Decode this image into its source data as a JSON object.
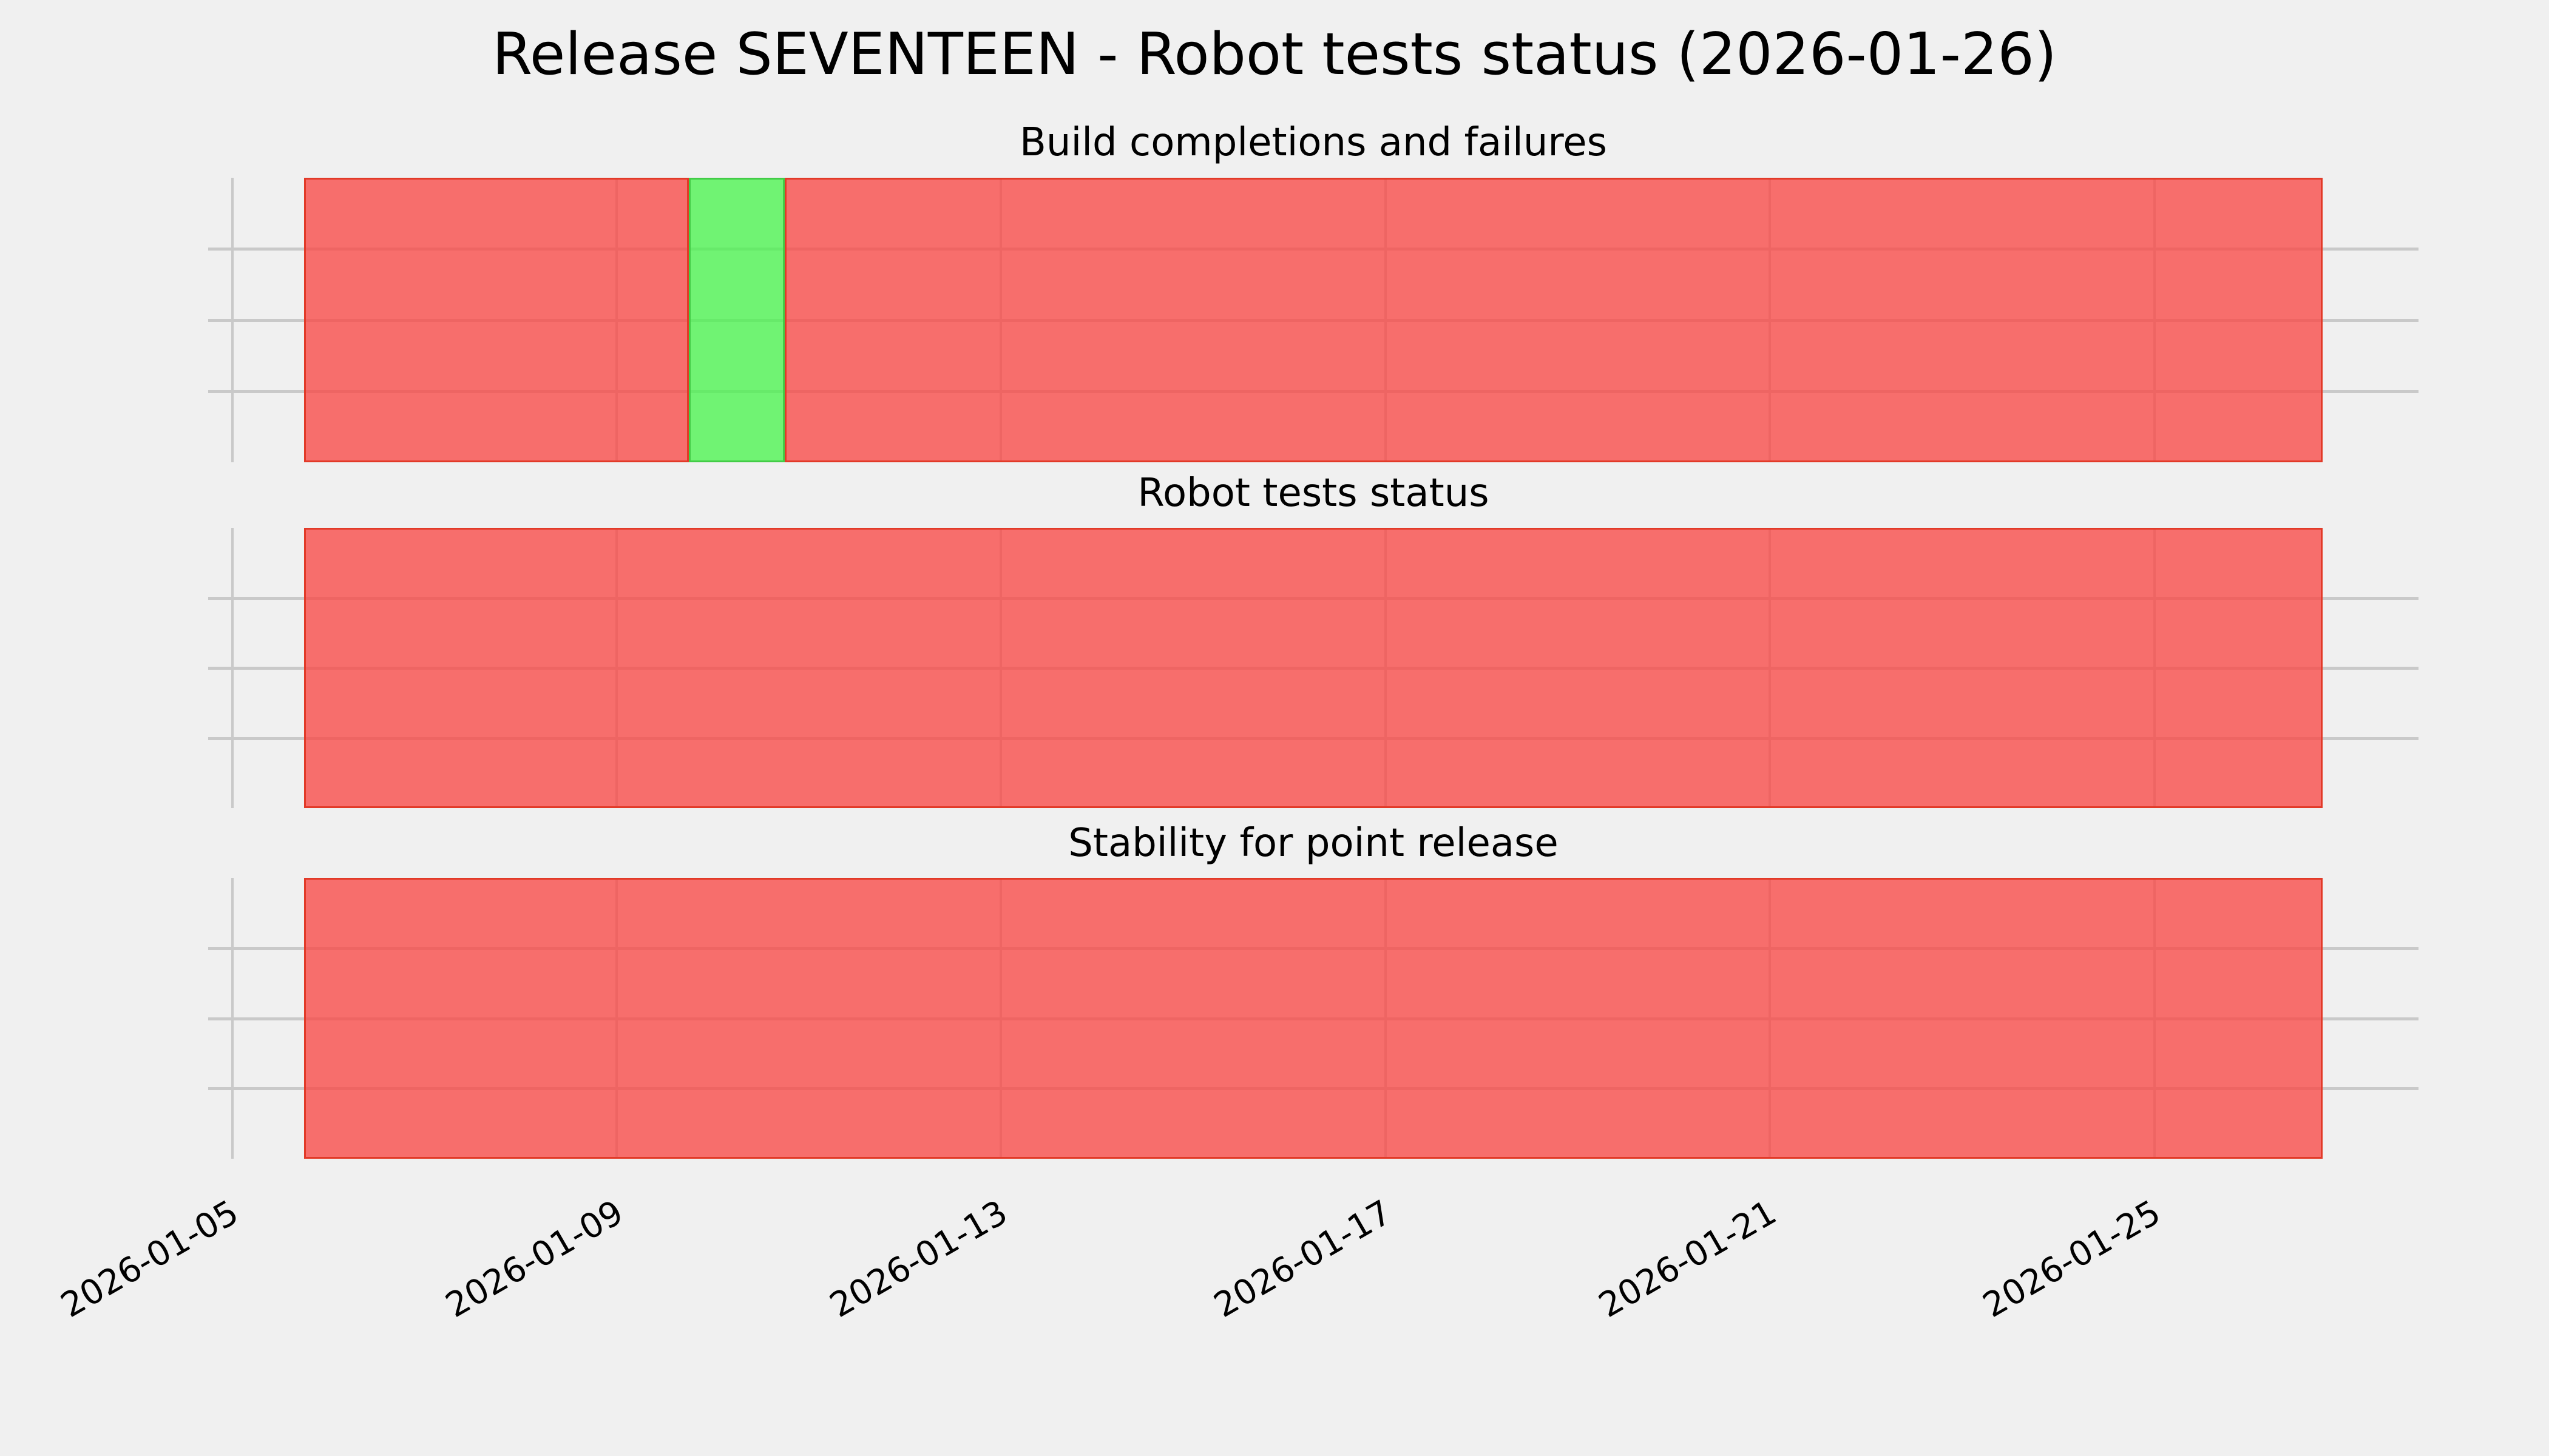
{
  "suptitle": "Release SEVENTEEN - Robot tests status (2026-01-26)",
  "colors": {
    "background": "#f0f0f0",
    "grid": "#c9c9c9",
    "text": "#000000",
    "pass_hex": "#74f377",
    "fail_hex": "#f57472",
    "pass_fill": "rgba(75,244,79,0.78)",
    "fail_fill": "rgba(248,73,71,0.78)",
    "pass_edge": "#43cc47",
    "fail_edge": "#e23a28"
  },
  "x_axis": {
    "start": "2026-01-04T18:00:00",
    "end": "2026-01-27T18:00:00",
    "ticks": [
      {
        "value": "2026-01-05T00:00:00",
        "label": "2026-01-05"
      },
      {
        "value": "2026-01-09T00:00:00",
        "label": "2026-01-09"
      },
      {
        "value": "2026-01-13T00:00:00",
        "label": "2026-01-13"
      },
      {
        "value": "2026-01-17T00:00:00",
        "label": "2026-01-17"
      },
      {
        "value": "2026-01-21T00:00:00",
        "label": "2026-01-21"
      },
      {
        "value": "2026-01-25T00:00:00",
        "label": "2026-01-25"
      }
    ]
  },
  "chart_data": [
    {
      "type": "bar",
      "subtype": "status-timeline",
      "title": "Build completions and failures",
      "lanes": 4,
      "period_start": "2026-01-05T18:00:00",
      "period_end": "2026-01-26T18:00:00",
      "segments": [
        {
          "start": "2026-01-05T18:00:00",
          "end": "2026-01-09T18:00:00",
          "status": "fail"
        },
        {
          "start": "2026-01-09T18:00:00",
          "end": "2026-01-10T18:00:00",
          "status": "pass"
        },
        {
          "start": "2026-01-10T18:00:00",
          "end": "2026-01-26T18:00:00",
          "status": "fail"
        }
      ]
    },
    {
      "type": "bar",
      "subtype": "status-timeline",
      "title": "Robot tests status",
      "lanes": 4,
      "period_start": "2026-01-05T18:00:00",
      "period_end": "2026-01-26T18:00:00",
      "segments": [
        {
          "start": "2026-01-05T18:00:00",
          "end": "2026-01-26T18:00:00",
          "status": "fail"
        }
      ]
    },
    {
      "type": "bar",
      "subtype": "status-timeline",
      "title": "Stability for point release",
      "lanes": 4,
      "period_start": "2026-01-05T18:00:00",
      "period_end": "2026-01-26T18:00:00",
      "segments": [
        {
          "start": "2026-01-05T18:00:00",
          "end": "2026-01-26T18:00:00",
          "status": "fail"
        }
      ]
    }
  ]
}
